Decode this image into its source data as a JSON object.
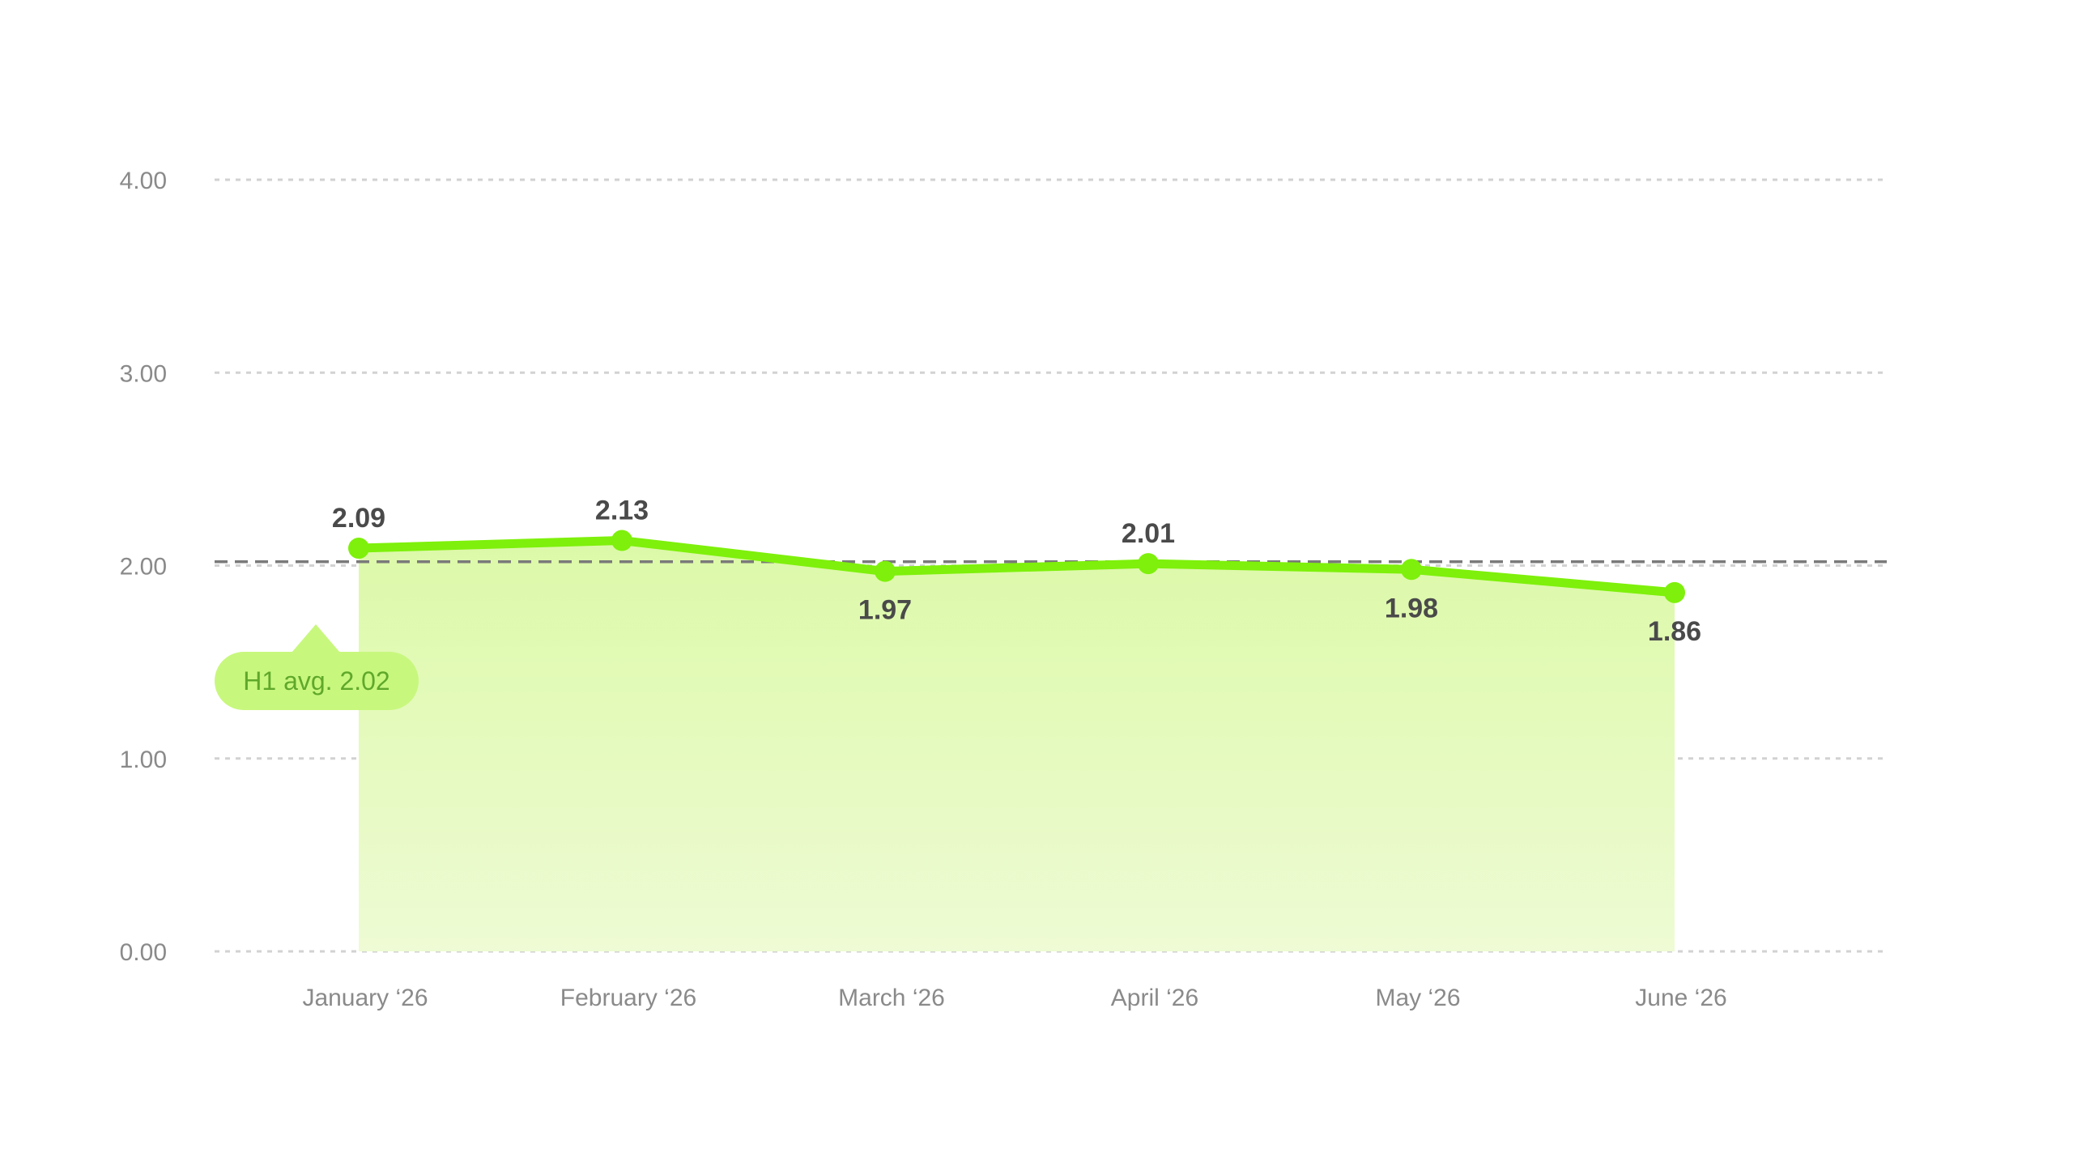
{
  "chart_data": {
    "type": "area",
    "categories": [
      "January ‘26",
      "February ‘26",
      "March ‘26",
      "April ‘26",
      "May ‘26",
      "June ‘26"
    ],
    "series": [
      {
        "values": [
          2.09,
          2.13,
          1.97,
          2.01,
          1.98,
          1.86
        ]
      }
    ],
    "value_labels": [
      "2.09",
      "2.13",
      "1.97",
      "2.01",
      "1.98",
      "1.86"
    ],
    "label_positions": [
      "above",
      "above",
      "below",
      "above",
      "below",
      "below"
    ],
    "y_ticks": [
      0,
      1,
      2,
      3,
      4
    ],
    "y_tick_labels": [
      "0.00",
      "1.00",
      "2.00",
      "3.00",
      "4.00"
    ],
    "ylim": [
      0,
      4
    ],
    "grid": true,
    "reference_line": {
      "value": 2.02,
      "label": "H1 avg. 2.02",
      "style": "dashed"
    },
    "colors": {
      "line": "#7ef00b",
      "area_top": "#dcf9a8",
      "area_bottom": "#eefbd4",
      "grid": "#d2d2d2",
      "reference": "#7a7a7a",
      "callout_bg": "#c8f77e",
      "callout_text": "#5fa82a",
      "tick_text": "#8a8a8a",
      "value_text": "#4a4a4a"
    }
  }
}
